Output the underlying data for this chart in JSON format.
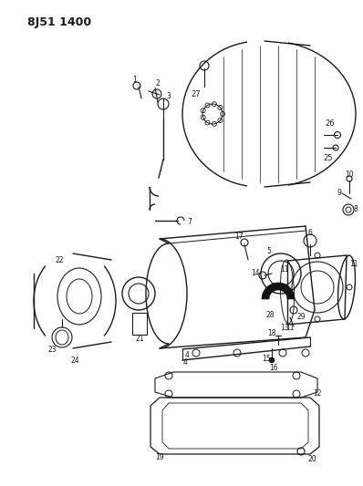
{
  "title": "8J51 1400",
  "bg_color": "#ffffff",
  "line_color": "#1a1a1a",
  "title_fontsize": 9,
  "figsize": [
    3.98,
    5.33
  ],
  "dpi": 100
}
